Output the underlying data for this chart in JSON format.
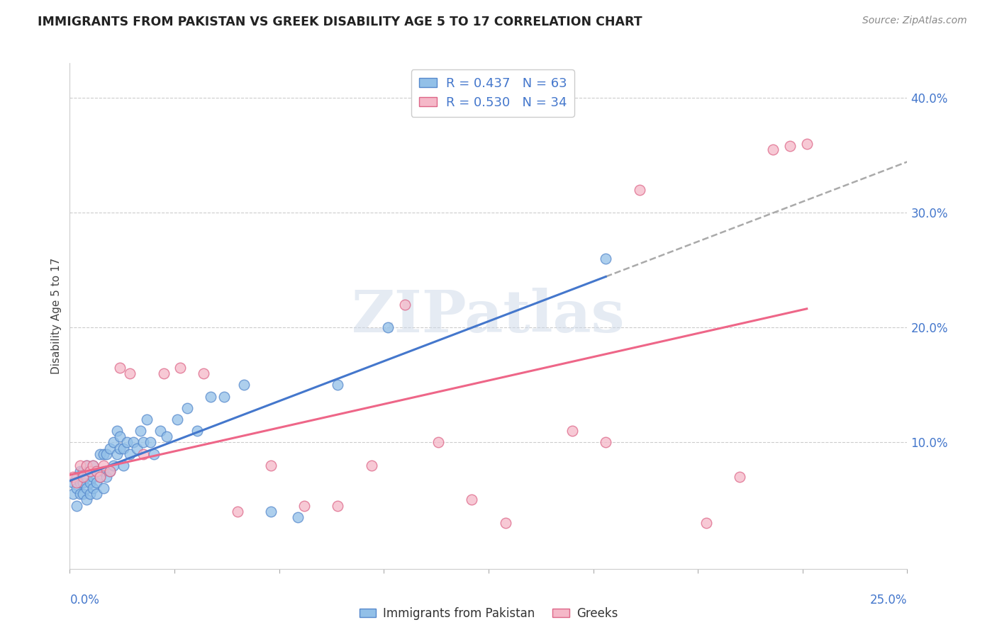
{
  "title": "IMMIGRANTS FROM PAKISTAN VS GREEK DISABILITY AGE 5 TO 17 CORRELATION CHART",
  "source": "Source: ZipAtlas.com",
  "ylabel": "Disability Age 5 to 17",
  "xlim": [
    0.0,
    0.25
  ],
  "ylim": [
    -0.01,
    0.43
  ],
  "blue_R": 0.437,
  "blue_N": 63,
  "pink_R": 0.53,
  "pink_N": 34,
  "blue_color": "#92c0e8",
  "pink_color": "#f5b8c8",
  "blue_edge_color": "#5588cc",
  "pink_edge_color": "#dd6688",
  "blue_line_color": "#4477cc",
  "pink_line_color": "#ee6688",
  "tick_color": "#4477cc",
  "watermark_text": "ZIPatlas",
  "blue_scatter_x": [
    0.001,
    0.001,
    0.002,
    0.002,
    0.002,
    0.003,
    0.003,
    0.003,
    0.004,
    0.004,
    0.004,
    0.005,
    0.005,
    0.005,
    0.005,
    0.006,
    0.006,
    0.006,
    0.007,
    0.007,
    0.007,
    0.008,
    0.008,
    0.008,
    0.009,
    0.009,
    0.01,
    0.01,
    0.01,
    0.011,
    0.011,
    0.012,
    0.012,
    0.013,
    0.013,
    0.014,
    0.014,
    0.015,
    0.015,
    0.016,
    0.016,
    0.017,
    0.018,
    0.019,
    0.02,
    0.021,
    0.022,
    0.023,
    0.024,
    0.025,
    0.027,
    0.029,
    0.032,
    0.035,
    0.038,
    0.042,
    0.046,
    0.052,
    0.06,
    0.068,
    0.08,
    0.095,
    0.16
  ],
  "blue_scatter_y": [
    0.055,
    0.065,
    0.06,
    0.07,
    0.045,
    0.055,
    0.065,
    0.075,
    0.055,
    0.065,
    0.075,
    0.05,
    0.06,
    0.07,
    0.08,
    0.055,
    0.065,
    0.075,
    0.06,
    0.07,
    0.08,
    0.055,
    0.065,
    0.075,
    0.07,
    0.09,
    0.06,
    0.075,
    0.09,
    0.07,
    0.09,
    0.075,
    0.095,
    0.08,
    0.1,
    0.09,
    0.11,
    0.095,
    0.105,
    0.08,
    0.095,
    0.1,
    0.09,
    0.1,
    0.095,
    0.11,
    0.1,
    0.12,
    0.1,
    0.09,
    0.11,
    0.105,
    0.12,
    0.13,
    0.11,
    0.14,
    0.14,
    0.15,
    0.04,
    0.035,
    0.15,
    0.2,
    0.26
  ],
  "pink_scatter_x": [
    0.001,
    0.002,
    0.003,
    0.004,
    0.005,
    0.006,
    0.007,
    0.008,
    0.009,
    0.01,
    0.012,
    0.015,
    0.018,
    0.022,
    0.028,
    0.033,
    0.04,
    0.05,
    0.06,
    0.07,
    0.08,
    0.09,
    0.1,
    0.11,
    0.12,
    0.13,
    0.15,
    0.16,
    0.17,
    0.19,
    0.2,
    0.21,
    0.215,
    0.22
  ],
  "pink_scatter_y": [
    0.07,
    0.065,
    0.08,
    0.07,
    0.08,
    0.075,
    0.08,
    0.075,
    0.07,
    0.08,
    0.075,
    0.165,
    0.16,
    0.09,
    0.16,
    0.165,
    0.16,
    0.04,
    0.08,
    0.045,
    0.045,
    0.08,
    0.22,
    0.1,
    0.05,
    0.03,
    0.11,
    0.1,
    0.32,
    0.03,
    0.07,
    0.355,
    0.358,
    0.36
  ]
}
